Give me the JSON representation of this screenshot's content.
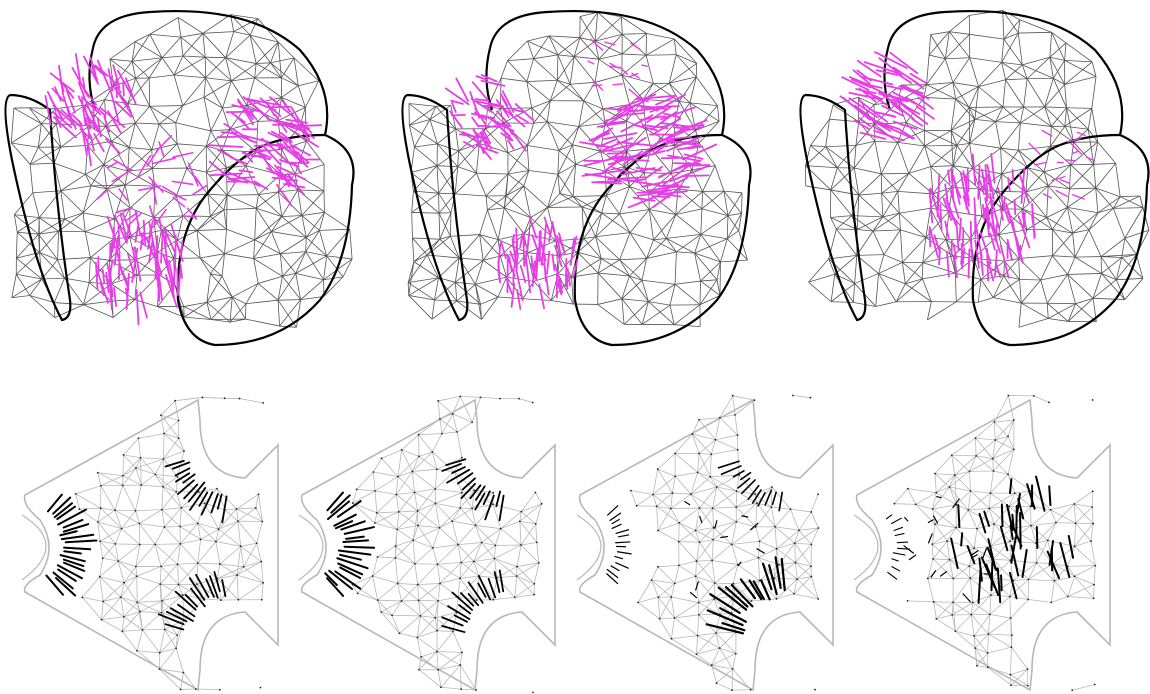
{
  "figure": {
    "top_row": {
      "panel_count": 3,
      "vector_color": "#e83ee8",
      "mesh_line_color": "#555555",
      "boundary_color": "#000000",
      "panels": [
        {
          "hot_spots": [
            "upper-left",
            "center-right",
            "bottom"
          ]
        },
        {
          "hot_spots": [
            "upper-left",
            "center-right",
            "bottom"
          ]
        },
        {
          "hot_spots": [
            "upper-left",
            "bottom-center"
          ]
        }
      ]
    },
    "bottom_row": {
      "panel_count": 4,
      "vector_color": "#000000",
      "mesh_line_color": "#b8b8b8",
      "panels": [
        {
          "hot_spots": [
            "left-notch",
            "top-notch",
            "bottom-notch"
          ]
        },
        {
          "hot_spots": [
            "left-notch",
            "top-notch",
            "bottom-notch"
          ]
        },
        {
          "hot_spots": [
            "bottom-notch",
            "top-notch"
          ]
        },
        {
          "hot_spots": [
            "center"
          ]
        }
      ]
    }
  }
}
